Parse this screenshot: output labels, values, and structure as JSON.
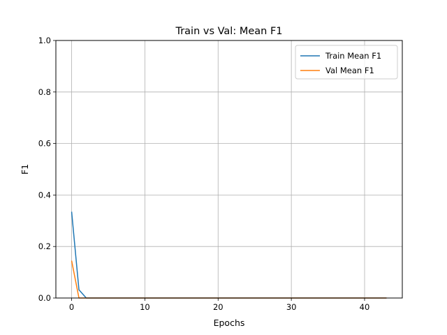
{
  "chart_data": {
    "type": "line",
    "title": "Train vs Val: Mean F1",
    "xlabel": "Epochs",
    "ylabel": "F1",
    "xlim": [
      -2.15,
      45.15
    ],
    "ylim": [
      0,
      1
    ],
    "xticks": [
      0,
      10,
      20,
      30,
      40
    ],
    "yticks": [
      0.0,
      0.2,
      0.4,
      0.6,
      0.8,
      1.0
    ],
    "xtick_labels": [
      "0",
      "10",
      "20",
      "30",
      "40"
    ],
    "ytick_labels": [
      "0.0",
      "0.2",
      "0.4",
      "0.6",
      "0.8",
      "1.0"
    ],
    "grid": true,
    "legend_position": "top-right",
    "series": [
      {
        "name": "Train Mean F1",
        "color": "#1f77b4",
        "x": [
          0,
          1,
          2,
          3,
          4,
          5,
          6,
          7,
          8,
          9,
          10,
          11,
          12,
          13,
          14,
          15,
          16,
          17,
          18,
          19,
          20,
          21,
          22,
          23,
          24,
          25,
          26,
          27,
          28,
          29,
          30,
          31,
          32,
          33,
          34,
          35,
          36,
          37,
          38,
          39,
          40,
          41,
          42,
          43
        ],
        "y": [
          0.335,
          0.032,
          0,
          0,
          0,
          0,
          0,
          0,
          0,
          0,
          0,
          0,
          0,
          0,
          0,
          0,
          0,
          0,
          0,
          0,
          0,
          0,
          0,
          0,
          0,
          0,
          0,
          0,
          0,
          0,
          0,
          0,
          0,
          0,
          0,
          0,
          0,
          0,
          0,
          0,
          0,
          0,
          0,
          0
        ]
      },
      {
        "name": "Val Mean F1",
        "color": "#ff7f0e",
        "x": [
          0,
          1,
          2,
          3,
          4,
          5,
          6,
          7,
          8,
          9,
          10,
          11,
          12,
          13,
          14,
          15,
          16,
          17,
          18,
          19,
          20,
          21,
          22,
          23,
          24,
          25,
          26,
          27,
          28,
          29,
          30,
          31,
          32,
          33,
          34,
          35,
          36,
          37,
          38,
          39,
          40,
          41,
          42,
          43
        ],
        "y": [
          0.145,
          0,
          0,
          0,
          0,
          0,
          0,
          0,
          0,
          0,
          0,
          0,
          0,
          0,
          0,
          0,
          0,
          0,
          0,
          0,
          0,
          0,
          0,
          0,
          0,
          0,
          0,
          0,
          0,
          0,
          0,
          0,
          0,
          0,
          0,
          0,
          0,
          0,
          0,
          0,
          0,
          0,
          0,
          0
        ]
      }
    ]
  }
}
